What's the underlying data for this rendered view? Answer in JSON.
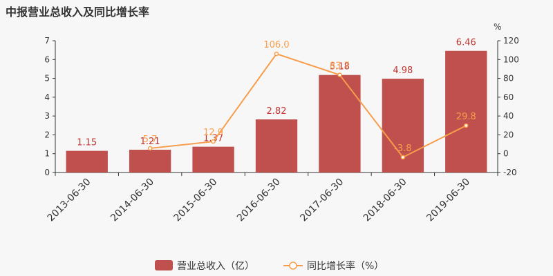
{
  "chart_data": {
    "type": "bar",
    "title": "中报营业总收入及同比增长率",
    "categories": [
      "2013-06-30",
      "2014-06-30",
      "2015-06-30",
      "2016-06-30",
      "2017-06-30",
      "2018-06-30",
      "2019-06-30"
    ],
    "series": [
      {
        "name": "营业总收入（亿）",
        "type": "bar",
        "axis": "left",
        "values": [
          1.15,
          1.21,
          1.37,
          2.82,
          5.18,
          4.98,
          6.46
        ],
        "labels": [
          "1.15",
          "1.21",
          "1.37",
          "2.82",
          "5.18",
          "4.98",
          "6.46"
        ]
      },
      {
        "name": "同比增长率（%）",
        "type": "line",
        "axis": "right",
        "values": [
          null,
          5.7,
          12.9,
          106.0,
          83.7,
          -3.8,
          29.8
        ],
        "labels": [
          "",
          "5.7",
          "12.9",
          "106.0",
          "83.7",
          "-3.8",
          "29.8"
        ]
      }
    ],
    "y_left": {
      "min": 0,
      "max": 7,
      "ticks": [
        "0",
        "1",
        "2",
        "3",
        "4",
        "5",
        "6",
        "7"
      ]
    },
    "y_right": {
      "min": -20,
      "max": 120,
      "ticks": [
        "-20",
        "0",
        "20",
        "40",
        "60",
        "80",
        "100",
        "120"
      ],
      "unit": "%"
    },
    "grid": false,
    "legend_position": "bottom-center",
    "colors": {
      "bar": "#c0504d",
      "bar_label": "#c23531",
      "line": "#f79d4b",
      "axis": "#333333"
    }
  }
}
